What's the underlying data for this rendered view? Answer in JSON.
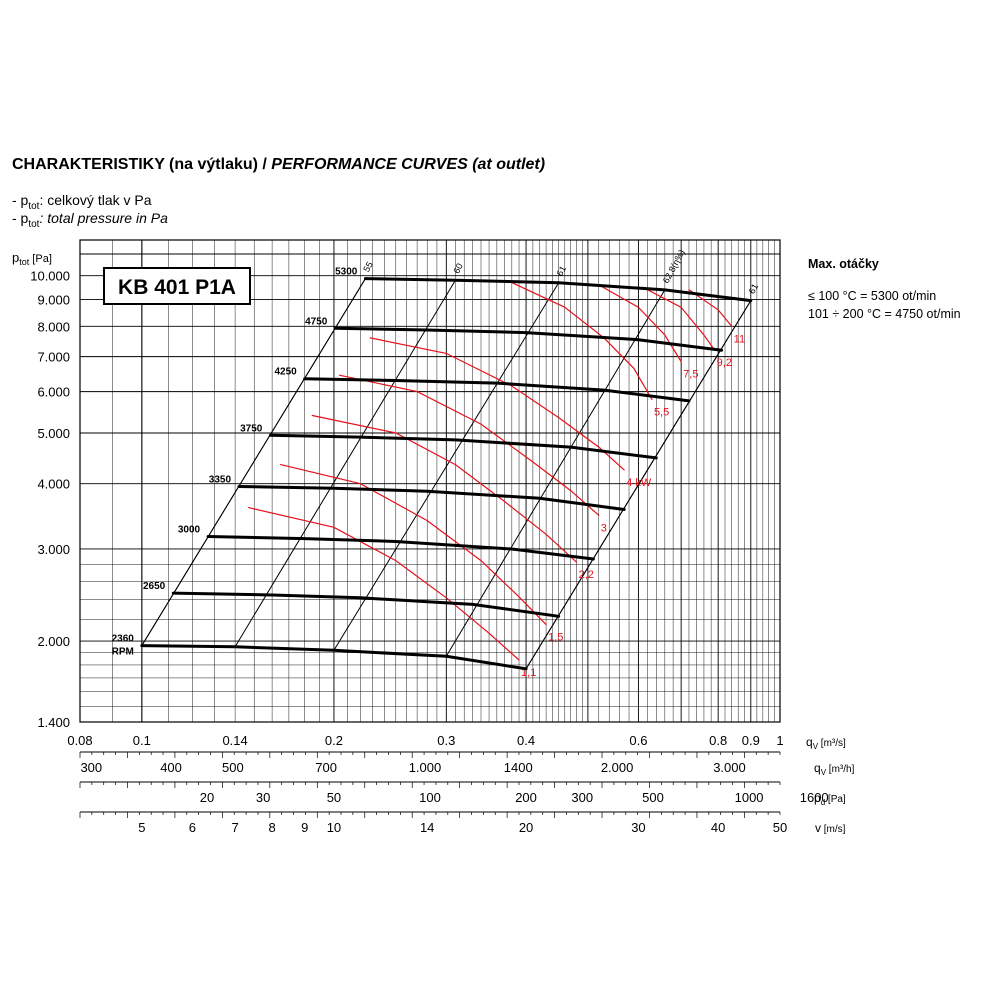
{
  "header": {
    "title_bold": "CHARAKTERISTIKY (na výtlaku) / ",
    "title_italic": "PERFORMANCE CURVES (at outlet)"
  },
  "legend": {
    "line1_prefix": "- p",
    "line1_sub": "tot",
    "line1_text": ": celkový tlak v Pa",
    "line2_prefix": "- p",
    "line2_sub": "tot",
    "line2_text": ": total pressure in Pa"
  },
  "side_note": {
    "heading": "Max. otáčky",
    "line1": "≤ 100 °C = 5300 ot/min",
    "line2": "101 ÷ 200 °C = 4750 ot/min"
  },
  "chart_data": {
    "type": "line",
    "title": "KB 401 P1A",
    "y_axis": {
      "label": "p",
      "label_sub": "tot",
      "unit": "[Pa]",
      "scale": "log",
      "range": [
        1400,
        11700
      ],
      "ticks": [
        "10.000",
        "9.000",
        "8.000",
        "7.000",
        "6.000",
        "5.000",
        "4.000",
        "3.000",
        "2.000",
        "1.400"
      ]
    },
    "x_axis": {
      "label": "q",
      "label_sub": "V",
      "unit": "[m³/s]",
      "scale": "log",
      "range": [
        0.08,
        1.0
      ],
      "ticks": [
        "0.08",
        "0.1",
        "0.14",
        "0.2",
        "0.3",
        "0.4",
        "0.6",
        "0.8",
        "0.9",
        "1"
      ]
    },
    "secondary_axes": [
      {
        "label": "q",
        "label_sub": "V",
        "unit": "[m³/h]",
        "ticks": [
          "300",
          "400",
          "500",
          "700",
          "1.000",
          "1400",
          "2.000",
          "3.000"
        ]
      },
      {
        "label": "p",
        "label_sub": "d",
        "unit": "[Pa]",
        "ticks": [
          "20",
          "30",
          "50",
          "100",
          "200",
          "300",
          "500",
          "1000",
          "1600"
        ]
      },
      {
        "label": "v",
        "label_sub": "",
        "unit": "[m/s]",
        "ticks": [
          "5",
          "6",
          "7",
          "8",
          "9",
          "10",
          "14",
          "20",
          "30",
          "40",
          "50"
        ]
      }
    ],
    "speed_unit": "RPM",
    "speed_curves": [
      {
        "name": "2360",
        "rpm": 2360,
        "points": [
          [
            0.1,
            1960
          ],
          [
            0.14,
            1950
          ],
          [
            0.2,
            1920
          ],
          [
            0.3,
            1870
          ],
          [
            0.4,
            1770
          ]
        ]
      },
      {
        "name": "2650",
        "rpm": 2650,
        "points": [
          [
            0.112,
            2470
          ],
          [
            0.16,
            2450
          ],
          [
            0.22,
            2420
          ],
          [
            0.33,
            2350
          ],
          [
            0.45,
            2230
          ]
        ]
      },
      {
        "name": "3000",
        "rpm": 3000,
        "points": [
          [
            0.127,
            3170
          ],
          [
            0.18,
            3140
          ],
          [
            0.25,
            3100
          ],
          [
            0.38,
            3000
          ],
          [
            0.51,
            2870
          ]
        ]
      },
      {
        "name": "3350",
        "rpm": 3350,
        "points": [
          [
            0.142,
            3950
          ],
          [
            0.2,
            3920
          ],
          [
            0.28,
            3870
          ],
          [
            0.42,
            3750
          ],
          [
            0.57,
            3570
          ]
        ]
      },
      {
        "name": "3750",
        "rpm": 3750,
        "points": [
          [
            0.159,
            4950
          ],
          [
            0.22,
            4910
          ],
          [
            0.31,
            4850
          ],
          [
            0.47,
            4700
          ],
          [
            0.64,
            4480
          ]
        ]
      },
      {
        "name": "4250",
        "rpm": 4250,
        "points": [
          [
            0.18,
            6350
          ],
          [
            0.25,
            6300
          ],
          [
            0.36,
            6230
          ],
          [
            0.53,
            6040
          ],
          [
            0.72,
            5760
          ]
        ]
      },
      {
        "name": "4750",
        "rpm": 4750,
        "points": [
          [
            0.201,
            7930
          ],
          [
            0.28,
            7870
          ],
          [
            0.4,
            7780
          ],
          [
            0.6,
            7540
          ],
          [
            0.81,
            7200
          ]
        ]
      },
      {
        "name": "5300",
        "rpm": 5300,
        "points": [
          [
            0.224,
            9870
          ],
          [
            0.31,
            9800
          ],
          [
            0.45,
            9690
          ],
          [
            0.66,
            9390
          ],
          [
            0.9,
            8960
          ]
        ]
      }
    ],
    "efficiency_lines": [
      {
        "label": "55",
        "points": [
          [
            0.1,
            1960
          ],
          [
            0.224,
            9870
          ]
        ]
      },
      {
        "label": "60",
        "points": [
          [
            0.14,
            1950
          ],
          [
            0.31,
            9800
          ]
        ]
      },
      {
        "label": "61",
        "points": [
          [
            0.2,
            1920
          ],
          [
            0.45,
            9690
          ]
        ]
      },
      {
        "label": "62,8(η%)",
        "points": [
          [
            0.3,
            1870
          ],
          [
            0.66,
            9390
          ]
        ]
      },
      {
        "label": "61",
        "points": [
          [
            0.4,
            1770
          ],
          [
            0.9,
            8960
          ]
        ]
      }
    ],
    "power_curves": [
      {
        "label": "1,1",
        "points": [
          [
            0.147,
            3600
          ],
          [
            0.2,
            3300
          ],
          [
            0.25,
            2850
          ],
          [
            0.3,
            2420
          ],
          [
            0.35,
            2070
          ],
          [
            0.39,
            1840
          ]
        ]
      },
      {
        "label": "1,5",
        "points": [
          [
            0.165,
            4350
          ],
          [
            0.22,
            4000
          ],
          [
            0.28,
            3400
          ],
          [
            0.34,
            2850
          ],
          [
            0.39,
            2430
          ],
          [
            0.43,
            2150
          ]
        ]
      },
      {
        "label": "2,2",
        "points": [
          [
            0.185,
            5400
          ],
          [
            0.25,
            5000
          ],
          [
            0.31,
            4350
          ],
          [
            0.37,
            3700
          ],
          [
            0.43,
            3200
          ],
          [
            0.48,
            2830
          ]
        ]
      },
      {
        "label": "3",
        "points": [
          [
            0.204,
            6450
          ],
          [
            0.27,
            6000
          ],
          [
            0.34,
            5200
          ],
          [
            0.41,
            4400
          ],
          [
            0.47,
            3880
          ],
          [
            0.52,
            3480
          ]
        ]
      },
      {
        "label": "4 kW",
        "points": [
          [
            0.228,
            7600
          ],
          [
            0.3,
            7100
          ],
          [
            0.38,
            6150
          ],
          [
            0.45,
            5350
          ],
          [
            0.52,
            4700
          ],
          [
            0.57,
            4250
          ]
        ]
      },
      {
        "label": "5,5",
        "points": [
          [
            0.38,
            9700
          ],
          [
            0.46,
            8700
          ],
          [
            0.53,
            7600
          ],
          [
            0.59,
            6650
          ],
          [
            0.63,
            5800
          ]
        ]
      },
      {
        "label": "7,5",
        "points": [
          [
            0.52,
            9600
          ],
          [
            0.6,
            8700
          ],
          [
            0.66,
            7700
          ],
          [
            0.7,
            6850
          ]
        ]
      },
      {
        "label": "9,2",
        "points": [
          [
            0.61,
            9500
          ],
          [
            0.7,
            8700
          ],
          [
            0.76,
            7700
          ],
          [
            0.79,
            7200
          ]
        ]
      },
      {
        "label": "11",
        "points": [
          [
            0.72,
            9400
          ],
          [
            0.8,
            8600
          ],
          [
            0.84,
            8000
          ]
        ]
      }
    ],
    "grid": true
  }
}
